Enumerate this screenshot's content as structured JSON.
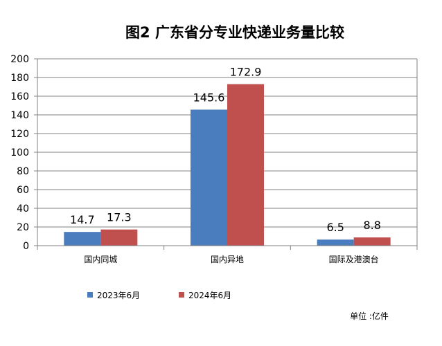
{
  "chart_data": {
    "type": "bar",
    "title": "图2 广东省分专业快递业务量比较",
    "categories": [
      "国内同城",
      "国内异地",
      "国际及港澳台"
    ],
    "series": [
      {
        "name": "2023年6月",
        "values": [
          14.7,
          145.6,
          6.5
        ],
        "labels": [
          "14.7",
          "145.6",
          "6.5"
        ],
        "color": "#4a7dbd"
      },
      {
        "name": "2024年6月",
        "values": [
          17.3,
          172.9,
          8.8
        ],
        "labels": [
          "17.3",
          "172.9",
          "8.8"
        ],
        "color": "#c0504d"
      }
    ],
    "ylim": [
      0,
      200
    ],
    "yticks": [
      0,
      20,
      40,
      60,
      80,
      100,
      120,
      140,
      160,
      180,
      200
    ],
    "grid": true,
    "legend": "bottom-left",
    "unit": "单位 :亿件"
  }
}
